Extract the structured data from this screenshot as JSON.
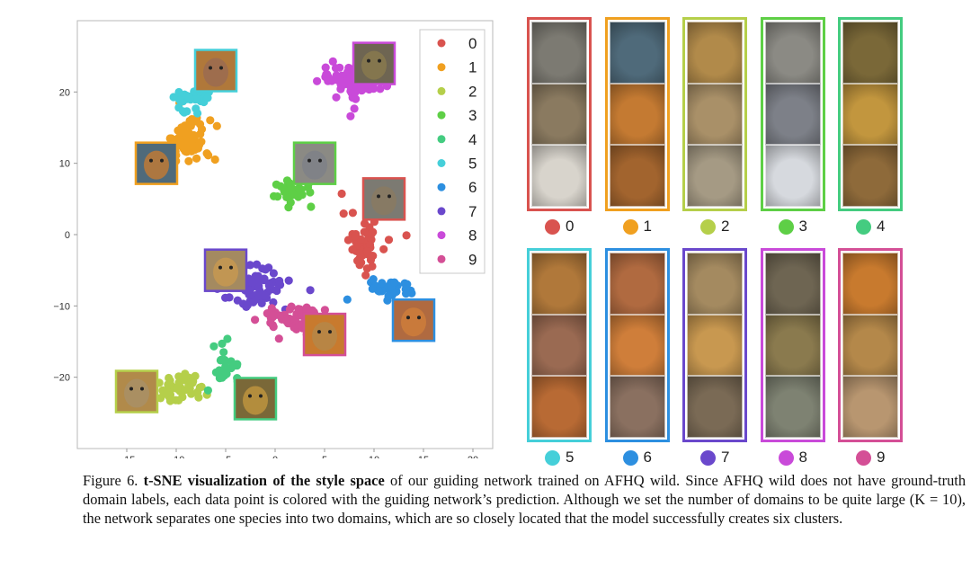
{
  "chart_data": {
    "type": "scatter",
    "title": "",
    "xlabel": "",
    "ylabel": "",
    "xlim": [
      -20,
      22
    ],
    "ylim": [
      -30,
      30
    ],
    "xticks": [
      -15,
      -10,
      -5,
      0,
      5,
      10,
      15,
      20
    ],
    "yticks": [
      -20,
      -10,
      0,
      10,
      20
    ],
    "grid": false,
    "legend_position": "top-right",
    "series": [
      {
        "name": "0",
        "color": "#d9534f",
        "center": [
          9.0,
          -1.0
        ],
        "spread": [
          2.0,
          4.2
        ],
        "count": 55,
        "thumb": "wolf",
        "thumb_at": [
          11,
          5
        ]
      },
      {
        "name": "1",
        "color": "#f0a020",
        "center": [
          -9.0,
          13.0
        ],
        "spread": [
          2.3,
          3.0
        ],
        "count": 70,
        "thumb": "tiger",
        "thumb_at": [
          -12,
          10
        ]
      },
      {
        "name": "2",
        "color": "#b5cf4a",
        "center": [
          -9.5,
          -21.5
        ],
        "spread": [
          2.6,
          2.0
        ],
        "count": 45,
        "thumb": "cheetah",
        "thumb_at": [
          -14,
          -22
        ]
      },
      {
        "name": "3",
        "color": "#5ecf46",
        "center": [
          2.0,
          6.0
        ],
        "spread": [
          1.7,
          1.6
        ],
        "count": 30,
        "thumb": "snow leopard",
        "thumb_at": [
          4,
          10
        ]
      },
      {
        "name": "4",
        "color": "#44cc80",
        "center": [
          -5.0,
          -18.0
        ],
        "spread": [
          1.2,
          2.0
        ],
        "count": 25,
        "thumb": "cheetah",
        "thumb_at": [
          -2,
          -23
        ]
      },
      {
        "name": "5",
        "color": "#45cfd9",
        "center": [
          -8.5,
          19.0
        ],
        "spread": [
          1.8,
          1.5
        ],
        "count": 35,
        "thumb": "tiger",
        "thumb_at": [
          -6,
          23
        ]
      },
      {
        "name": "6",
        "color": "#2d8fe0",
        "center": [
          12.0,
          -7.5
        ],
        "spread": [
          2.0,
          1.2
        ],
        "count": 35,
        "thumb": "fox",
        "thumb_at": [
          14,
          -12
        ]
      },
      {
        "name": "7",
        "color": "#6a48cc",
        "center": [
          -2.0,
          -7.5
        ],
        "spread": [
          3.2,
          3.0
        ],
        "count": 80,
        "thumb": "lion",
        "thumb_at": [
          -5,
          -5
        ]
      },
      {
        "name": "8",
        "color": "#c94ad9",
        "center": [
          8.0,
          21.5
        ],
        "spread": [
          3.0,
          2.2
        ],
        "count": 80,
        "thumb": "leopard",
        "thumb_at": [
          10,
          24
        ]
      },
      {
        "name": "9",
        "color": "#d44f96",
        "center": [
          2.0,
          -12.0
        ],
        "spread": [
          3.0,
          2.2
        ],
        "count": 60,
        "thumb": "lion",
        "thumb_at": [
          5,
          -14
        ]
      }
    ]
  },
  "legend": [
    "0",
    "1",
    "2",
    "3",
    "4",
    "5",
    "6",
    "7",
    "8",
    "9"
  ],
  "domains": [
    {
      "label": "0",
      "color": "#d9534f",
      "tiles": [
        "#7c7a72",
        "#8a7a60",
        "#d8d4cc"
      ]
    },
    {
      "label": "1",
      "color": "#f0a020",
      "tiles": [
        "#4f6a7a",
        "#c47a32",
        "#a2642e"
      ]
    },
    {
      "label": "2",
      "color": "#b5cf4a",
      "tiles": [
        "#b18a4a",
        "#a99068",
        "#a59a84"
      ]
    },
    {
      "label": "3",
      "color": "#5ecf46",
      "tiles": [
        "#8b8a84",
        "#7d8088",
        "#d6d9de"
      ]
    },
    {
      "label": "4",
      "color": "#44cc80",
      "tiles": [
        "#7a6838",
        "#c2963e",
        "#8e6a3a"
      ]
    },
    {
      "label": "5",
      "color": "#45cfd9",
      "tiles": [
        "#b0783a",
        "#9a6a52",
        "#b86a34"
      ]
    },
    {
      "label": "6",
      "color": "#2d8fe0",
      "tiles": [
        "#b06a40",
        "#cf7e3a",
        "#8a7060"
      ]
    },
    {
      "label": "7",
      "color": "#6a48cc",
      "tiles": [
        "#a48a60",
        "#c89850",
        "#7a6a55"
      ]
    },
    {
      "label": "8",
      "color": "#c94ad9",
      "tiles": [
        "#6e6552",
        "#8a7a4e",
        "#7e8272"
      ]
    },
    {
      "label": "9",
      "color": "#d44f96",
      "tiles": [
        "#c87a2e",
        "#b4884a",
        "#b89670"
      ]
    }
  ],
  "caption": {
    "prefix": "Figure 6. ",
    "bold": "t-SNE visualization of the style space",
    "text": " of our guiding network trained on AFHQ wild. Since AFHQ wild does not have ground-truth domain labels, each data point is colored with the guiding network’s prediction. Although we set the number of domains to be quite large (K = 10), the network separates one species into two domains, which are so closely located that the model successfully creates six clusters."
  }
}
